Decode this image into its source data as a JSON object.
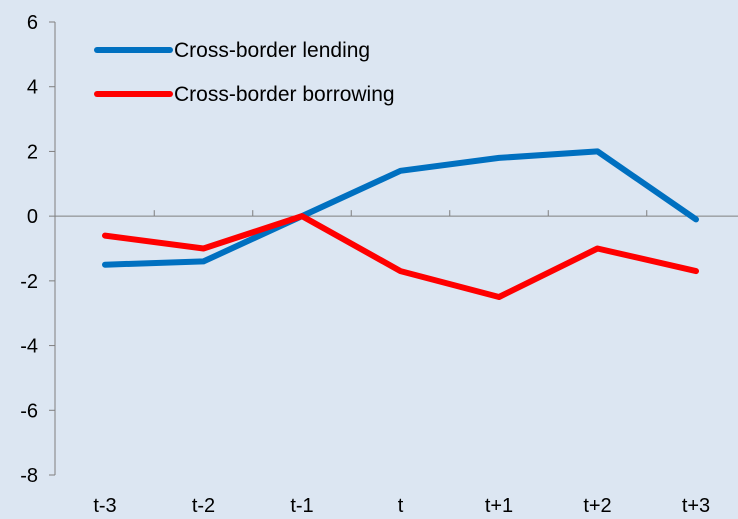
{
  "chart_data": {
    "type": "line",
    "title": "",
    "xlabel": "",
    "ylabel": "",
    "categories": [
      "t-3",
      "t-2",
      "t-1",
      "t",
      "t+1",
      "t+2",
      "t+3"
    ],
    "ylim": [
      -8,
      6
    ],
    "yticks": [
      "6",
      "4",
      "2",
      "0",
      "-2",
      "-4",
      "-6",
      "-8"
    ],
    "grid": false,
    "legend_position": "top-left",
    "series": [
      {
        "name": "Cross-border lending",
        "color": "#0070c0",
        "values": [
          -1.5,
          -1.4,
          0.0,
          1.4,
          1.8,
          2.0,
          -0.1
        ]
      },
      {
        "name": "Cross-border borrowing",
        "color": "#ff0000",
        "values": [
          -0.6,
          -1.0,
          0.0,
          -1.7,
          -2.5,
          -1.0,
          -1.7
        ]
      }
    ]
  }
}
